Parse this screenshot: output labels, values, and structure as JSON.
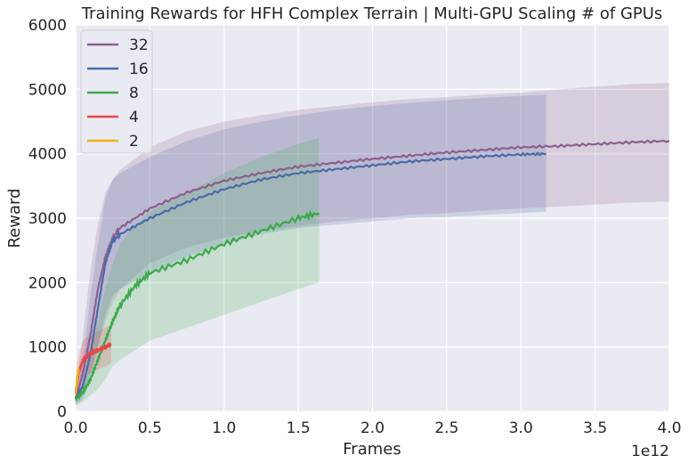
{
  "chart_data": {
    "type": "line",
    "title": "Training Rewards for HFH Complex Terrain | Multi-GPU Scaling # of GPUs",
    "xlabel": "Frames",
    "ylabel": "Reward",
    "x_offset_label": "1e12",
    "xlim": [
      0,
      4.0
    ],
    "ylim": [
      0,
      6000
    ],
    "x_ticks": [
      "0.0",
      "0.5",
      "1.0",
      "1.5",
      "2.0",
      "2.5",
      "3.0",
      "3.5",
      "4.0"
    ],
    "y_ticks": [
      "0",
      "1000",
      "2000",
      "3000",
      "4000",
      "5000",
      "6000"
    ],
    "grid": true,
    "legend_position": "top-left",
    "background": "#EAEAF2",
    "series": [
      {
        "name": "32",
        "color": "#8C5F8E",
        "x": [
          0.0,
          0.05,
          0.1,
          0.15,
          0.2,
          0.25,
          0.3,
          0.5,
          0.75,
          1.0,
          1.25,
          1.5,
          1.75,
          2.0,
          2.25,
          2.5,
          2.75,
          3.0,
          3.25,
          3.5,
          3.75,
          4.0
        ],
        "values": [
          200,
          600,
          1200,
          1900,
          2400,
          2700,
          2850,
          3150,
          3400,
          3580,
          3700,
          3800,
          3860,
          3920,
          3970,
          4020,
          4060,
          4100,
          4120,
          4150,
          4180,
          4200
        ],
        "upper": [
          300,
          1200,
          2200,
          2900,
          3400,
          3600,
          3750,
          4100,
          4350,
          4500,
          4600,
          4680,
          4740,
          4800,
          4850,
          4880,
          4920,
          4950,
          5000,
          5040,
          5080,
          5100
        ],
        "lower": [
          100,
          300,
          600,
          1000,
          1400,
          1700,
          1900,
          2300,
          2550,
          2700,
          2800,
          2880,
          2950,
          3000,
          3050,
          3080,
          3120,
          3150,
          3180,
          3210,
          3240,
          3260
        ]
      },
      {
        "name": "16",
        "color": "#4C6AA8",
        "x": [
          0.0,
          0.05,
          0.1,
          0.15,
          0.2,
          0.25,
          0.3,
          0.5,
          0.75,
          1.0,
          1.25,
          1.5,
          1.75,
          2.0,
          2.25,
          2.5,
          2.75,
          3.0,
          3.17
        ],
        "values": [
          200,
          400,
          900,
          1600,
          2300,
          2650,
          2750,
          3000,
          3250,
          3450,
          3600,
          3700,
          3760,
          3820,
          3880,
          3920,
          3960,
          3990,
          4000
        ],
        "upper": [
          300,
          800,
          1800,
          2600,
          3300,
          3600,
          3700,
          3950,
          4200,
          4380,
          4500,
          4600,
          4680,
          4740,
          4790,
          4830,
          4870,
          4900,
          4920
        ],
        "lower": [
          100,
          200,
          500,
          1000,
          1500,
          1800,
          1900,
          2150,
          2400,
          2600,
          2750,
          2850,
          2900,
          2950,
          3000,
          3020,
          3050,
          3080,
          3100
        ]
      },
      {
        "name": "8",
        "color": "#3CAA4A",
        "x": [
          0.0,
          0.05,
          0.1,
          0.15,
          0.2,
          0.25,
          0.3,
          0.4,
          0.5,
          0.75,
          1.0,
          1.25,
          1.5,
          1.64
        ],
        "values": [
          200,
          300,
          500,
          800,
          1100,
          1400,
          1650,
          1950,
          2150,
          2350,
          2600,
          2800,
          3000,
          3080
        ],
        "upper": [
          300,
          500,
          900,
          1400,
          1900,
          2300,
          2600,
          2900,
          3100,
          3400,
          3700,
          3950,
          4150,
          4250
        ],
        "lower": [
          100,
          150,
          250,
          350,
          500,
          700,
          800,
          950,
          1100,
          1300,
          1500,
          1700,
          1900,
          2000
        ]
      },
      {
        "name": "4",
        "color": "#E24A4A",
        "x": [
          0.0,
          0.02,
          0.05,
          0.1,
          0.15,
          0.2,
          0.24
        ],
        "values": [
          300,
          600,
          800,
          900,
          950,
          1000,
          1050
        ],
        "upper": [
          500,
          900,
          1100,
          1200,
          1250,
          1300,
          1350
        ],
        "lower": [
          150,
          300,
          500,
          600,
          650,
          700,
          750
        ]
      },
      {
        "name": "2",
        "color": "#F5B01E",
        "x": [
          0.0,
          0.005,
          0.01,
          0.015,
          0.02
        ],
        "values": [
          300,
          400,
          500,
          600,
          650
        ],
        "upper": [
          500,
          600,
          700,
          800,
          850
        ],
        "lower": [
          150,
          200,
          250,
          300,
          350
        ]
      }
    ]
  }
}
